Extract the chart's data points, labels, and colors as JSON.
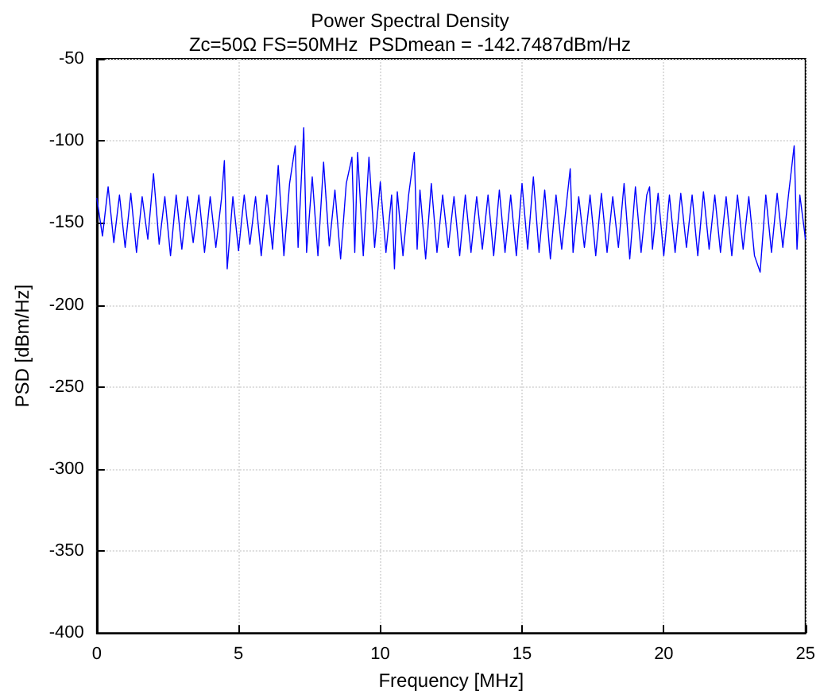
{
  "chart_data": {
    "type": "line",
    "title": "Power Spectral Density",
    "subtitle": "Zc=50Ω FS=50MHz  PSDmean = -142.7487dBm/Hz",
    "xlabel": "Frequency [MHz]",
    "ylabel": "PSD [dBm/Hz]",
    "x": [
      0,
      0.2,
      0.4,
      0.6,
      0.8,
      1.0,
      1.2,
      1.4,
      1.6,
      1.8,
      2.0,
      2.2,
      2.4,
      2.6,
      2.8,
      3.0,
      3.2,
      3.4,
      3.6,
      3.8,
      4.0,
      4.2,
      4.4,
      4.5,
      4.6,
      4.8,
      5.0,
      5.2,
      5.4,
      5.6,
      5.8,
      6.0,
      6.2,
      6.4,
      6.6,
      6.8,
      7.0,
      7.1,
      7.3,
      7.4,
      7.6,
      7.8,
      8.0,
      8.2,
      8.4,
      8.6,
      8.8,
      9.0,
      9.1,
      9.2,
      9.4,
      9.6,
      9.8,
      10.0,
      10.2,
      10.4,
      10.5,
      10.6,
      10.8,
      11.0,
      11.2,
      11.3,
      11.4,
      11.6,
      11.8,
      12.0,
      12.2,
      12.4,
      12.6,
      12.8,
      13.0,
      13.2,
      13.4,
      13.6,
      13.8,
      14.0,
      14.2,
      14.4,
      14.6,
      14.8,
      15.0,
      15.2,
      15.4,
      15.6,
      15.8,
      16.0,
      16.2,
      16.4,
      16.6,
      16.7,
      16.8,
      17.0,
      17.2,
      17.4,
      17.6,
      17.8,
      18.0,
      18.2,
      18.4,
      18.6,
      18.8,
      19.0,
      19.2,
      19.4,
      19.5,
      19.6,
      19.8,
      20.0,
      20.2,
      20.4,
      20.6,
      20.8,
      21.0,
      21.2,
      21.4,
      21.6,
      21.8,
      22.0,
      22.2,
      22.4,
      22.6,
      22.8,
      23.0,
      23.2,
      23.4,
      23.6,
      23.8,
      24.0,
      24.2,
      24.4,
      24.6,
      24.7,
      24.8,
      25.0
    ],
    "series": [
      {
        "color": "#0000ff",
        "values": [
          -135,
          -158,
          -128,
          -162,
          -133,
          -165,
          -132,
          -168,
          -134,
          -160,
          -120,
          -163,
          -134,
          -170,
          -133,
          -166,
          -134,
          -162,
          -133,
          -168,
          -134,
          -165,
          -135,
          -112,
          -178,
          -134,
          -167,
          -133,
          -163,
          -134,
          -170,
          -133,
          -166,
          -115,
          -170,
          -126,
          -103,
          -165,
          -92,
          -168,
          -122,
          -170,
          -113,
          -164,
          -130,
          -172,
          -126,
          -110,
          -168,
          -107,
          -170,
          -110,
          -165,
          -125,
          -168,
          -133,
          -178,
          -131,
          -170,
          -133,
          -107,
          -166,
          -130,
          -172,
          -126,
          -168,
          -133,
          -165,
          -134,
          -170,
          -133,
          -168,
          -134,
          -166,
          -133,
          -170,
          -130,
          -168,
          -133,
          -170,
          -126,
          -166,
          -122,
          -168,
          -130,
          -172,
          -133,
          -166,
          -133,
          -117,
          -168,
          -134,
          -165,
          -133,
          -170,
          -132,
          -168,
          -134,
          -165,
          -126,
          -172,
          -128,
          -168,
          -133,
          -128,
          -166,
          -132,
          -170,
          -133,
          -168,
          -132,
          -165,
          -133,
          -170,
          -131,
          -166,
          -133,
          -168,
          -134,
          -170,
          -133,
          -166,
          -134,
          -170,
          -180,
          -133,
          -168,
          -132,
          -165,
          -133,
          -103,
          -166,
          -133,
          -160
        ]
      }
    ],
    "xlim": [
      0,
      25
    ],
    "xticks": [
      0,
      5,
      10,
      15,
      20,
      25
    ],
    "ylim": [
      -400,
      -50
    ],
    "yticks": [
      -400,
      -350,
      -300,
      -250,
      -200,
      -150,
      -100,
      -50
    ],
    "grid": true,
    "marker": "none",
    "line_style": "solid"
  }
}
